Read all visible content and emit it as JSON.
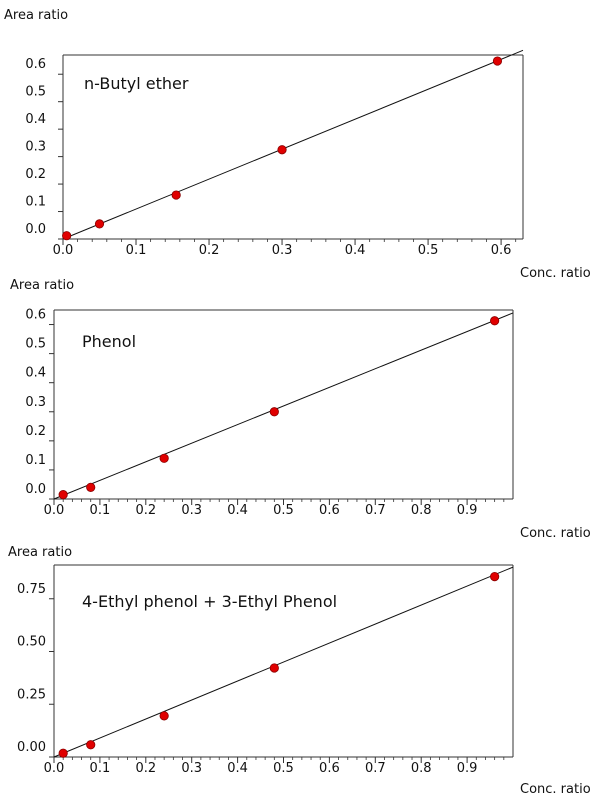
{
  "chart_data": [
    {
      "type": "scatter",
      "ylabel": "Area ratio",
      "xlabel": "Conc. ratio",
      "annotation": "n-Butyl  ether",
      "xlim": [
        0.0,
        0.63
      ],
      "ylim": [
        0.0,
        0.67
      ],
      "x_ticks": [
        "0.0",
        "0.1",
        "0.2",
        "0.3",
        "0.4",
        "0.5",
        "0.6"
      ],
      "y_ticks": [
        "0.0",
        "0.1",
        "0.2",
        "0.3",
        "0.4",
        "0.5",
        "0.6"
      ],
      "x": [
        0.005,
        0.05,
        0.155,
        0.3,
        0.595
      ],
      "y": [
        0.012,
        0.055,
        0.16,
        0.325,
        0.648
      ],
      "fit_line": {
        "x": [
          0.0,
          0.63
        ],
        "y": [
          0.0,
          0.687
        ]
      }
    },
    {
      "type": "scatter",
      "ylabel": "Area ratio",
      "xlabel": "Conc. ratio",
      "annotation": "Phenol",
      "xlim": [
        0.0,
        1.0
      ],
      "ylim": [
        0.0,
        0.65
      ],
      "x_ticks": [
        "0.0",
        "0.1",
        "0.2",
        "0.3",
        "0.4",
        "0.5",
        "0.6",
        "0.7",
        "0.8",
        "0.9"
      ],
      "y_ticks": [
        "0.0",
        "0.1",
        "0.2",
        "0.3",
        "0.4",
        "0.5",
        "0.6"
      ],
      "x": [
        0.02,
        0.08,
        0.24,
        0.48,
        0.96
      ],
      "y": [
        0.015,
        0.04,
        0.14,
        0.3,
        0.613
      ],
      "fit_line": {
        "x": [
          0.0,
          1.0
        ],
        "y": [
          0.0,
          0.64
        ]
      }
    },
    {
      "type": "scatter",
      "ylabel": "Area ratio",
      "xlabel": "Conc. ratio",
      "annotation": "4-Ethyl phenol  + 3-Ethyl Phenol",
      "xlim": [
        0.0,
        1.0
      ],
      "ylim": [
        0.0,
        0.91
      ],
      "x_ticks": [
        "0.0",
        "0.1",
        "0.2",
        "0.3",
        "0.4",
        "0.5",
        "0.6",
        "0.7",
        "0.8",
        "0.9"
      ],
      "y_ticks": [
        "0.00",
        "0.25",
        "0.50",
        "0.75"
      ],
      "x": [
        0.02,
        0.08,
        0.24,
        0.48,
        0.96
      ],
      "y": [
        0.018,
        0.058,
        0.195,
        0.422,
        0.855
      ],
      "fit_line": {
        "x": [
          0.0,
          1.0
        ],
        "y": [
          0.0,
          0.9
        ]
      }
    }
  ],
  "colors": {
    "marker": "#e00000",
    "marker_edge": "#8a0000",
    "line": "#111111",
    "axis": "#333333"
  }
}
